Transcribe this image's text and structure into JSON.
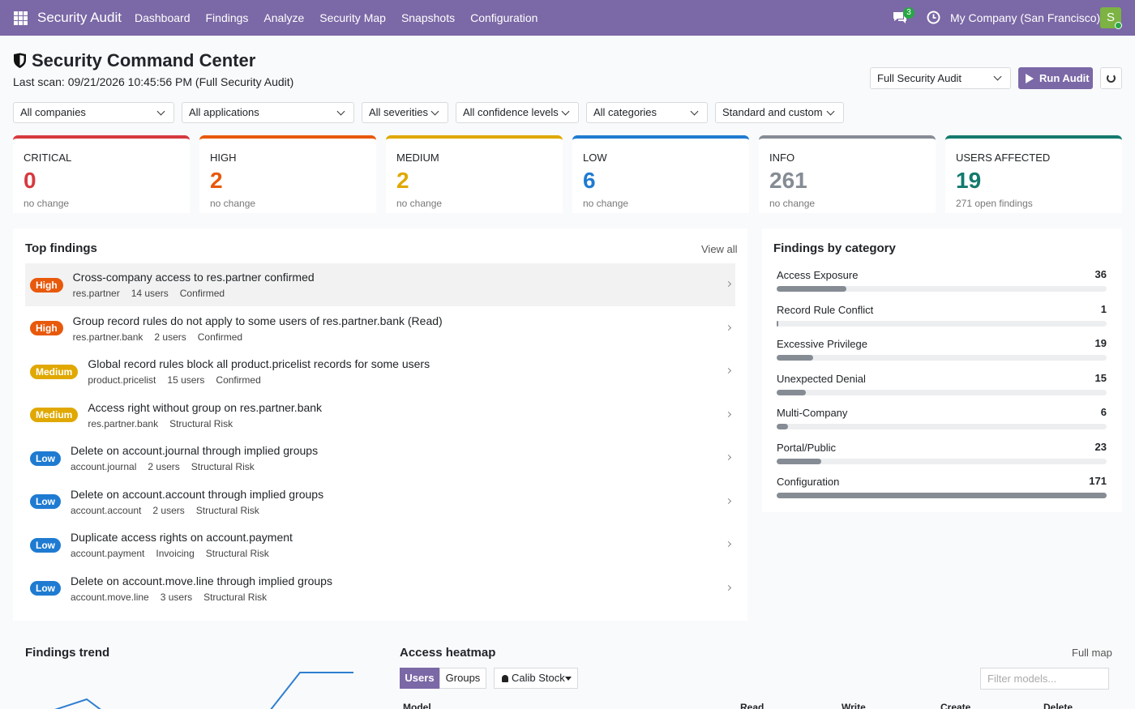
{
  "nav": {
    "app_name": "Security Audit",
    "menu": [
      "Dashboard",
      "Findings",
      "Analyze",
      "Security Map",
      "Snapshots",
      "Configuration"
    ],
    "notifications": 3,
    "company": "My Company (San Francisco)",
    "avatar": "S"
  },
  "header": {
    "title": "Security Command Center",
    "last_scan": "Last scan: 09/21/2026 10:45:56 PM (Full Security Audit)",
    "audit_select": "Full Security Audit",
    "run_button": "Run Audit"
  },
  "filters": [
    "All companies",
    "All applications",
    "All severities",
    "All confidence levels",
    "All categories",
    "Standard and custom"
  ],
  "summary_cards": [
    {
      "label": "CRITICAL",
      "value": 0,
      "note": "no change",
      "color": "#d63a3f"
    },
    {
      "label": "HIGH",
      "value": 2,
      "note": "no change",
      "color": "#e8590c"
    },
    {
      "label": "MEDIUM",
      "value": 2,
      "note": "no change",
      "color": "#e0a800"
    },
    {
      "label": "LOW",
      "value": 6,
      "note": "no change",
      "color": "#1f7bd1"
    },
    {
      "label": "INFO",
      "value": 261,
      "note": "no change",
      "color": "#868c94"
    },
    {
      "label": "USERS AFFECTED",
      "value": 19,
      "note": "271 open findings",
      "color": "#137a6e"
    }
  ],
  "top_findings": {
    "title": "Top findings",
    "view_all": "View all",
    "items": [
      {
        "severity": "High",
        "color": "#e8590c",
        "title": "Cross-company access to res.partner confirmed",
        "meta": [
          "res.partner",
          "14 users",
          "Confirmed"
        ]
      },
      {
        "severity": "High",
        "color": "#e8590c",
        "title": "Group record rules do not apply to some users of res.partner.bank (Read)",
        "meta": [
          "res.partner.bank",
          "2 users",
          "Confirmed"
        ]
      },
      {
        "severity": "Medium",
        "color": "#e0a800",
        "title": "Global record rules block all product.pricelist records for some users",
        "meta": [
          "product.pricelist",
          "15 users",
          "Confirmed"
        ]
      },
      {
        "severity": "Medium",
        "color": "#e0a800",
        "title": "Access right without group on res.partner.bank",
        "meta": [
          "res.partner.bank",
          "Structural Risk"
        ]
      },
      {
        "severity": "Low",
        "color": "#1f7bd1",
        "title": "Delete on account.journal through implied groups",
        "meta": [
          "account.journal",
          "2 users",
          "Structural Risk"
        ]
      },
      {
        "severity": "Low",
        "color": "#1f7bd1",
        "title": "Delete on account.account through implied groups",
        "meta": [
          "account.account",
          "2 users",
          "Structural Risk"
        ]
      },
      {
        "severity": "Low",
        "color": "#1f7bd1",
        "title": "Duplicate access rights on account.payment",
        "meta": [
          "account.payment",
          "Invoicing",
          "Structural Risk"
        ]
      },
      {
        "severity": "Low",
        "color": "#1f7bd1",
        "title": "Delete on account.move.line through implied groups",
        "meta": [
          "account.move.line",
          "3 users",
          "Structural Risk"
        ]
      }
    ]
  },
  "findings_by_category": {
    "title": "Findings by category",
    "items": [
      {
        "name": "Access Exposure",
        "value": 36
      },
      {
        "name": "Record Rule Conflict",
        "value": 1
      },
      {
        "name": "Excessive Privilege",
        "value": 19
      },
      {
        "name": "Unexpected Denial",
        "value": 15
      },
      {
        "name": "Multi-Company",
        "value": 6
      },
      {
        "name": "Portal/Public",
        "value": 23
      },
      {
        "name": "Configuration",
        "value": 171
      }
    ]
  },
  "findings_trend": {
    "title": "Findings trend"
  },
  "access_heatmap": {
    "title": "Access heatmap",
    "full_map": "Full map",
    "tabs": [
      "Users",
      "Groups"
    ],
    "user_select": "Calib Stock",
    "filter_placeholder": "Filter models...",
    "columns": [
      "Model",
      "Read",
      "Write",
      "Create",
      "Delete"
    ]
  }
}
